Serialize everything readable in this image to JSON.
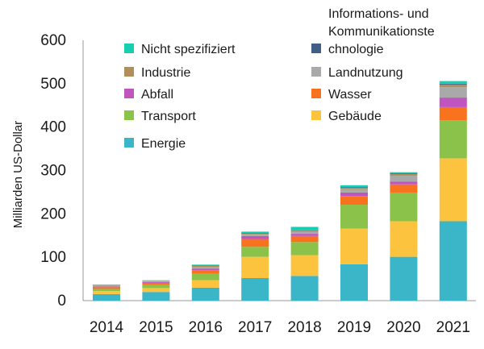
{
  "chart_data": {
    "type": "bar",
    "stacked": true,
    "title": "",
    "xlabel": "",
    "ylabel": "Milliarden US-Dollar",
    "ylim": [
      0,
      600
    ],
    "yticks": [
      0,
      100,
      200,
      300,
      400,
      500,
      600
    ],
    "grid": false,
    "legend_position": "top",
    "categories": [
      "2014",
      "2015",
      "2016",
      "2017",
      "2018",
      "2019",
      "2020",
      "2021"
    ],
    "series": [
      {
        "name": "Energie",
        "color": "#3bb5c8",
        "values": [
          15,
          20,
          30,
          52,
          57,
          84,
          101,
          183
        ]
      },
      {
        "name": "Gebäude",
        "color": "#fcc33f",
        "values": [
          7,
          9,
          17,
          49,
          48,
          82,
          82,
          145
        ]
      },
      {
        "name": "Transport",
        "color": "#8bc34a",
        "values": [
          5,
          7,
          15,
          23,
          30,
          55,
          66,
          88
        ]
      },
      {
        "name": "Wasser",
        "color": "#f9721e",
        "values": [
          4,
          5,
          8,
          18,
          14,
          20,
          19,
          30
        ]
      },
      {
        "name": "Abfall",
        "color": "#c055c0",
        "values": [
          2,
          2,
          4,
          7,
          5,
          8,
          6,
          22
        ]
      },
      {
        "name": "Landnutzung",
        "color": "#a9a9a9",
        "values": [
          2,
          2,
          4,
          4,
          5,
          8,
          14,
          24
        ]
      },
      {
        "name": "Industrie",
        "color": "#b08f5a",
        "values": [
          1,
          1,
          2,
          2,
          2,
          3,
          4,
          6
        ]
      },
      {
        "name": "Informations- und Kommunikationstechnologie",
        "color": "#3f5f87",
        "values": [
          0,
          0,
          1,
          1,
          1,
          1,
          2,
          2
        ]
      },
      {
        "name": "Nicht spezifiziert",
        "color": "#16cfb0",
        "values": [
          1,
          1,
          2,
          3,
          8,
          5,
          2,
          6
        ]
      }
    ],
    "legend": {
      "left_column": [
        "Nicht spezifiziert",
        "Industrie",
        "Abfall",
        "Transport",
        "Energie"
      ],
      "right_column": [
        "Informations- und Kommunikationstechnologie",
        "Landnutzung",
        "Wasser",
        "Gebäude"
      ],
      "wrapped_label_lines": [
        "Informations- und",
        "Kommunikationste",
        "chnologie"
      ]
    }
  }
}
